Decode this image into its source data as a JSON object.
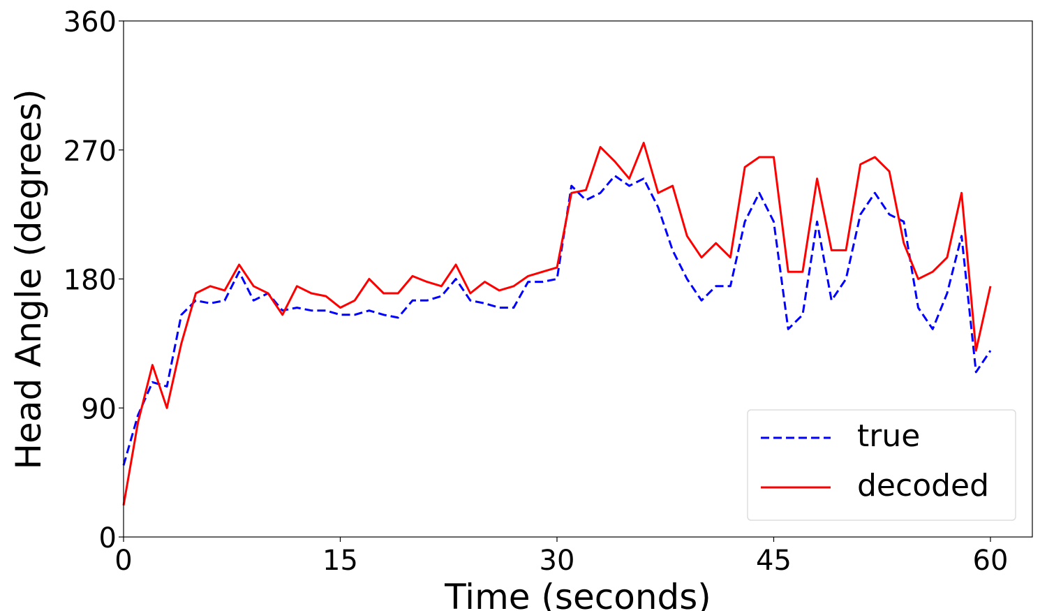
{
  "chart_data": {
    "type": "line",
    "xlabel": "Time (seconds)",
    "ylabel": "Head Angle (degrees)",
    "x": [
      0,
      1,
      2,
      3,
      4,
      5,
      6,
      7,
      8,
      9,
      10,
      11,
      12,
      13,
      14,
      15,
      16,
      17,
      18,
      19,
      20,
      21,
      22,
      23,
      24,
      25,
      26,
      27,
      28,
      29,
      30,
      31,
      32,
      33,
      34,
      35,
      36,
      37,
      38,
      39,
      40,
      41,
      42,
      43,
      44,
      45,
      46,
      47,
      48,
      49,
      50,
      51,
      52,
      53,
      54,
      55,
      56,
      57,
      58,
      59,
      60
    ],
    "series": [
      {
        "name": "true",
        "color": "#0000ff",
        "dash": "dashed",
        "values": [
          50,
          85,
          108,
          105,
          155,
          165,
          163,
          165,
          185,
          165,
          170,
          158,
          160,
          158,
          158,
          155,
          155,
          158,
          155,
          153,
          165,
          165,
          168,
          180,
          165,
          163,
          160,
          160,
          178,
          178,
          180,
          245,
          235,
          240,
          252,
          245,
          250,
          230,
          200,
          180,
          165,
          175,
          175,
          220,
          240,
          220,
          145,
          155,
          220,
          165,
          180,
          225,
          240,
          225,
          220,
          160,
          145,
          170,
          210,
          115,
          130
        ]
      },
      {
        "name": "decoded",
        "color": "#ff0000",
        "dash": "solid",
        "values": [
          22,
          80,
          120,
          90,
          135,
          170,
          175,
          172,
          190,
          175,
          170,
          155,
          175,
          170,
          168,
          160,
          165,
          180,
          170,
          170,
          182,
          178,
          175,
          190,
          170,
          178,
          172,
          175,
          182,
          185,
          188,
          240,
          242,
          272,
          262,
          250,
          275,
          240,
          245,
          210,
          195,
          205,
          195,
          258,
          265,
          265,
          185,
          185,
          250,
          200,
          200,
          260,
          265,
          255,
          205,
          180,
          185,
          195,
          240,
          130,
          175
        ]
      }
    ],
    "xlim": [
      0,
      62.9
    ],
    "ylim": [
      0,
      360
    ],
    "xticks": [
      0,
      15,
      30,
      45,
      60
    ],
    "yticks": [
      0,
      90,
      180,
      270,
      360
    ],
    "legend": "lower right"
  }
}
